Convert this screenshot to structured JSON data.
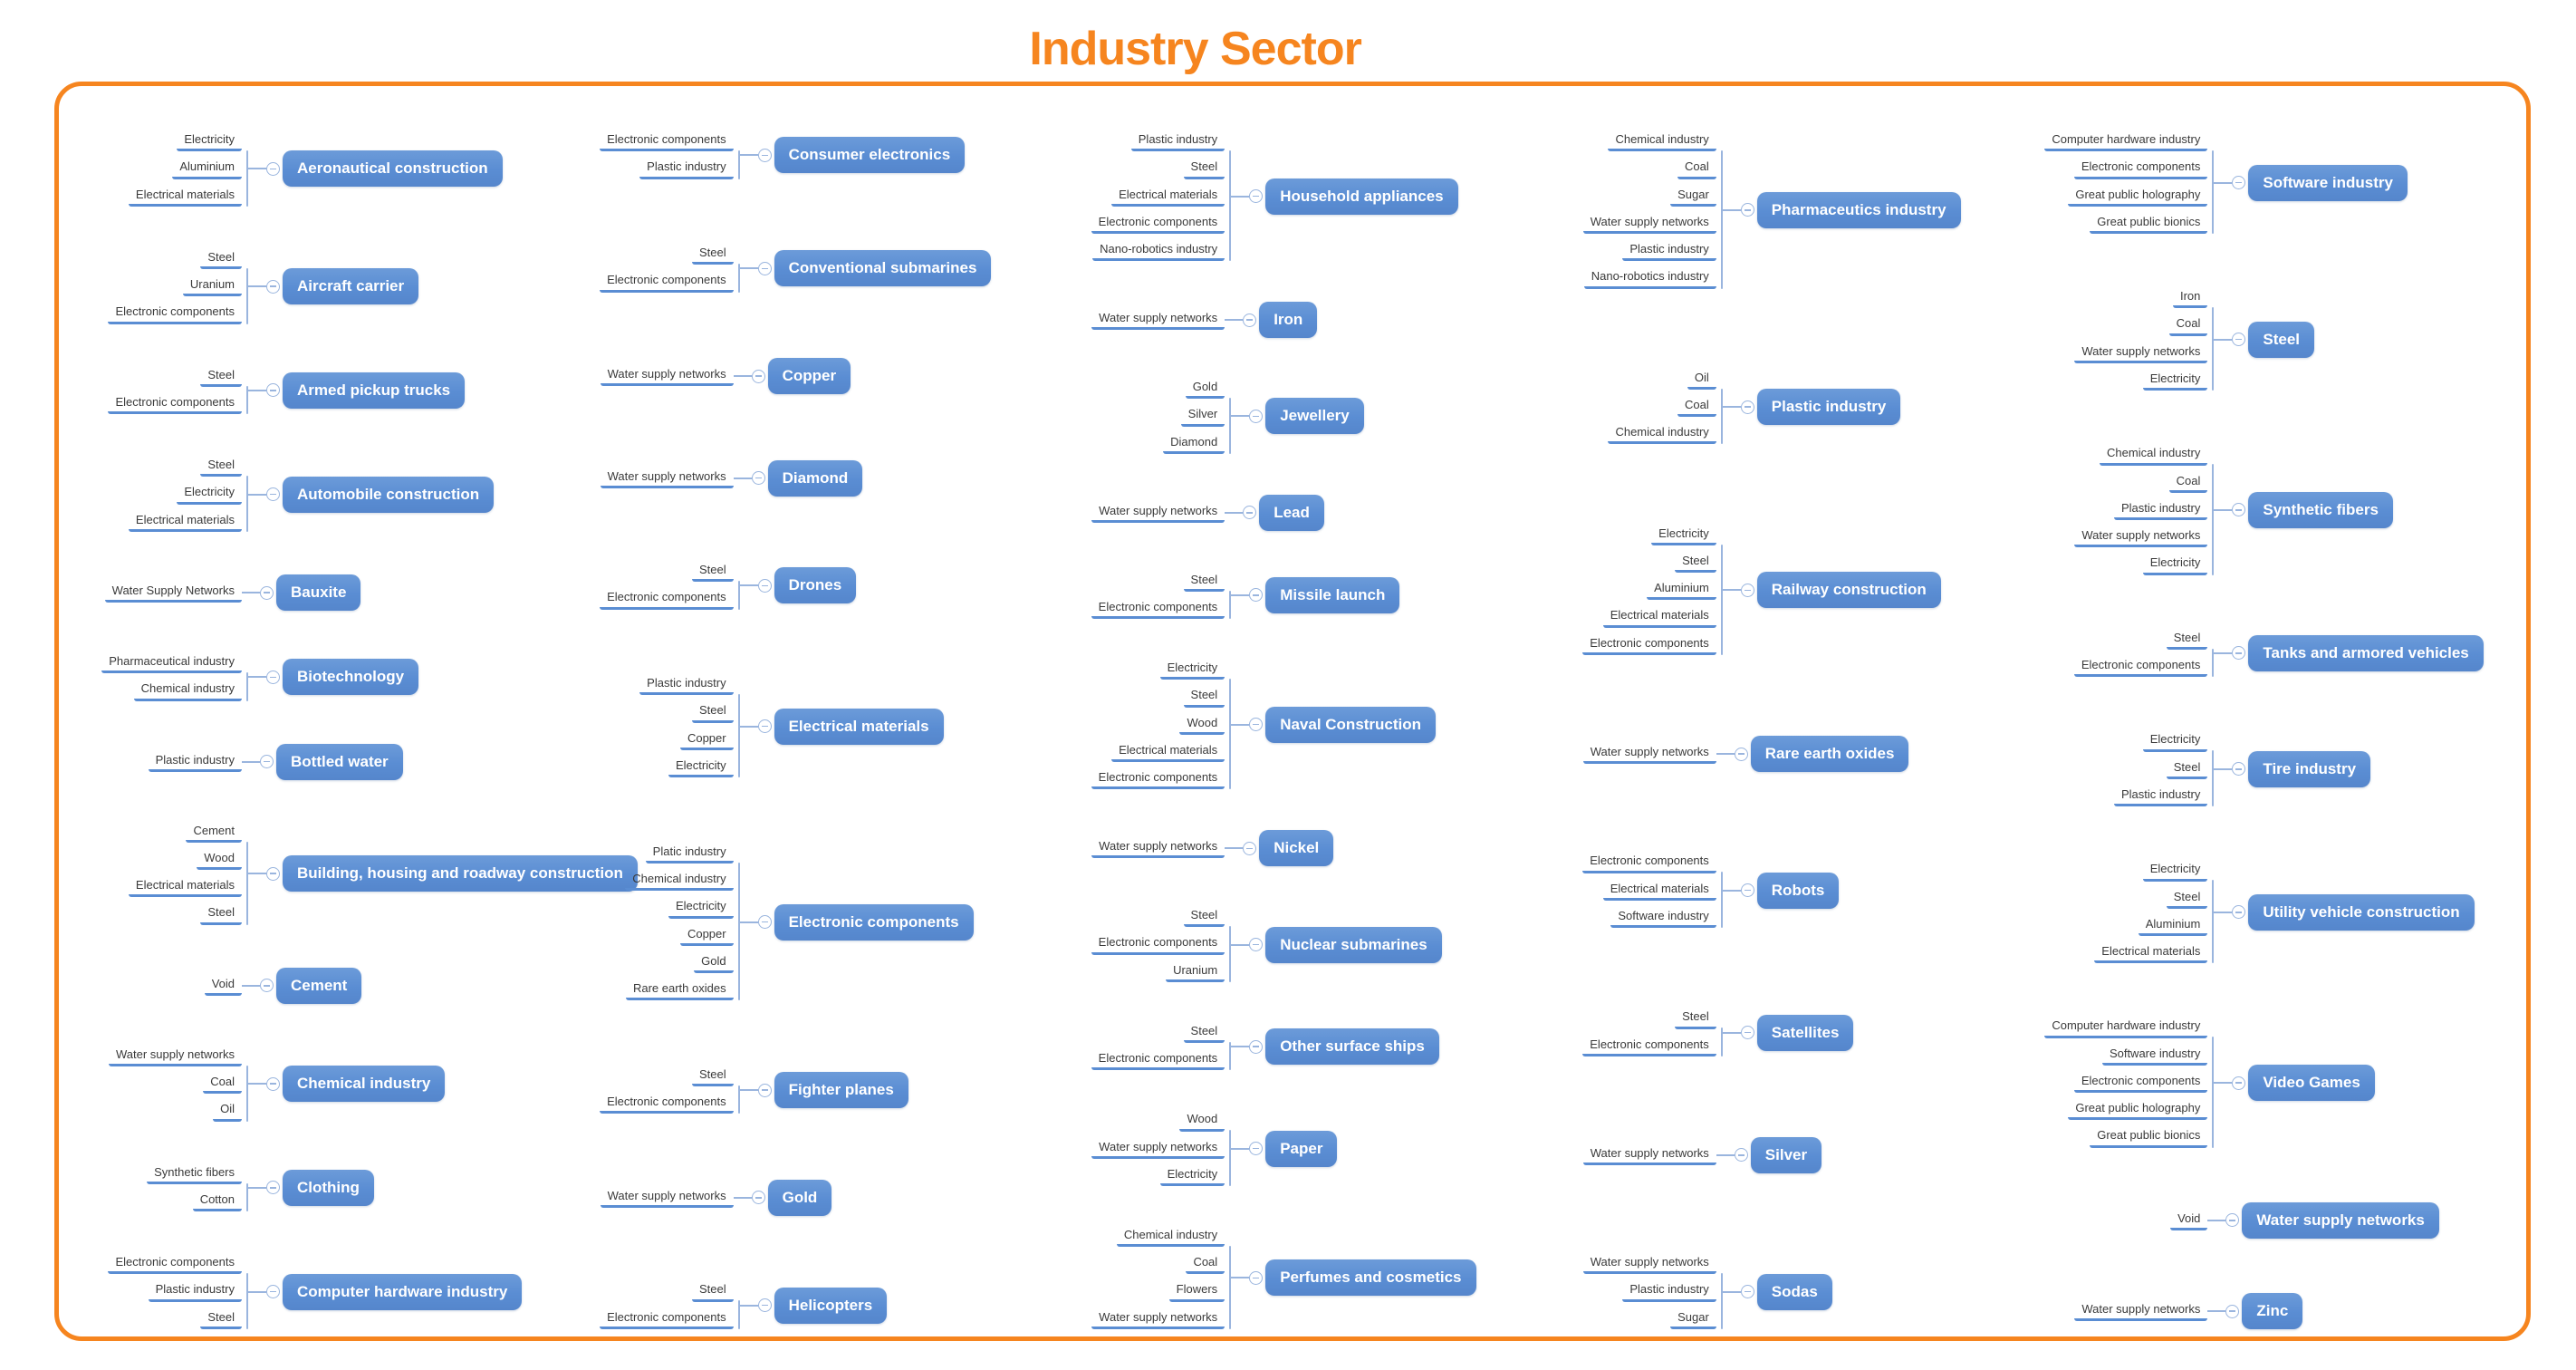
{
  "title": "Industry Sector",
  "colors": {
    "accent_orange": "#F6851F",
    "node_blue": "#5A8DD3",
    "connector_blue": "#9AB5DE",
    "label_text": "#3A3A3A"
  },
  "icons": {
    "collapse": "minus-in-circle"
  },
  "columns": [
    {
      "entries": [
        {
          "name": "Aeronautical construction",
          "inputs": [
            "Electricity",
            "Aluminium",
            "Electrical materials"
          ]
        },
        {
          "name": "Aircraft carrier",
          "inputs": [
            "Steel",
            "Uranium",
            "Electronic components"
          ]
        },
        {
          "name": "Armed pickup trucks",
          "inputs": [
            "Steel",
            "Electronic components"
          ]
        },
        {
          "name": "Automobile construction",
          "inputs": [
            "Steel",
            "Electricity",
            "Electrical materials"
          ]
        },
        {
          "name": "Bauxite",
          "inputs": [
            "Water Supply Networks"
          ]
        },
        {
          "name": "Biotechnology",
          "inputs": [
            "Pharmaceutical industry",
            "Chemical industry"
          ]
        },
        {
          "name": "Bottled water",
          "inputs": [
            "Plastic industry"
          ]
        },
        {
          "name": "Building, housing and roadway construction",
          "inputs": [
            "Cement",
            "Wood",
            "Electrical materials",
            "Steel"
          ]
        },
        {
          "name": "Cement",
          "inputs": [
            "Void"
          ]
        },
        {
          "name": "Chemical industry",
          "inputs": [
            "Water supply networks",
            "Coal",
            "Oil"
          ]
        },
        {
          "name": "Clothing",
          "inputs": [
            "Synthetic fibers",
            "Cotton"
          ]
        },
        {
          "name": "Computer hardware industry",
          "inputs": [
            "Electronic components",
            "Plastic industry",
            "Steel"
          ]
        }
      ]
    },
    {
      "entries": [
        {
          "name": "Consumer electronics",
          "inputs": [
            "Electronic components",
            "Plastic industry"
          ]
        },
        {
          "name": "Conventional submarines",
          "inputs": [
            "Steel",
            "Electronic components"
          ]
        },
        {
          "name": "Copper",
          "inputs": [
            "Water supply networks"
          ]
        },
        {
          "name": "Diamond",
          "inputs": [
            "Water supply networks"
          ]
        },
        {
          "name": "Drones",
          "inputs": [
            "Steel",
            "Electronic components"
          ]
        },
        {
          "name": "Electrical materials",
          "inputs": [
            "Plastic industry",
            "Steel",
            "Copper",
            "Electricity"
          ]
        },
        {
          "name": "Electronic components",
          "inputs": [
            "Platic industry",
            "Chemical industry",
            "Electricity",
            "Copper",
            "Gold",
            "Rare earth oxides"
          ]
        },
        {
          "name": "Fighter planes",
          "inputs": [
            "Steel",
            "Electronic components"
          ]
        },
        {
          "name": "Gold",
          "inputs": [
            "Water supply networks"
          ]
        },
        {
          "name": "Helicopters",
          "inputs": [
            "Steel",
            "Electronic components"
          ]
        }
      ]
    },
    {
      "entries": [
        {
          "name": "Household appliances",
          "inputs": [
            "Plastic industry",
            "Steel",
            "Electrical materials",
            "Electronic components",
            "Nano-robotics industry"
          ]
        },
        {
          "name": "Iron",
          "inputs": [
            "Water supply networks"
          ]
        },
        {
          "name": "Jewellery",
          "inputs": [
            "Gold",
            "Silver",
            "Diamond"
          ]
        },
        {
          "name": "Lead",
          "inputs": [
            "Water supply networks"
          ]
        },
        {
          "name": "Missile launch",
          "inputs": [
            "Steel",
            "Electronic components"
          ]
        },
        {
          "name": "Naval Construction",
          "inputs": [
            "Electricity",
            "Steel",
            "Wood",
            "Electrical materials",
            "Electronic components"
          ]
        },
        {
          "name": "Nickel",
          "inputs": [
            "Water supply networks"
          ]
        },
        {
          "name": "Nuclear submarines",
          "inputs": [
            "Steel",
            "Electronic components",
            "Uranium"
          ]
        },
        {
          "name": "Other surface ships",
          "inputs": [
            "Steel",
            "Electronic components"
          ]
        },
        {
          "name": "Paper",
          "inputs": [
            "Wood",
            "Water supply networks",
            "Electricity"
          ]
        },
        {
          "name": "Perfumes and cosmetics",
          "inputs": [
            "Chemical industry",
            "Coal",
            "Flowers",
            "Water supply networks"
          ]
        }
      ]
    },
    {
      "entries": [
        {
          "name": "Pharmaceutics industry",
          "inputs": [
            "Chemical industry",
            "Coal",
            "Sugar",
            "Water supply networks",
            "Plastic industry",
            "Nano-robotics industry"
          ]
        },
        {
          "name": "Plastic industry",
          "inputs": [
            "Oil",
            "Coal",
            "Chemical industry"
          ]
        },
        {
          "name": "Railway construction",
          "inputs": [
            "Electricity",
            "Steel",
            "Aluminium",
            "Electrical materials",
            "Electronic components"
          ]
        },
        {
          "name": "Rare earth oxides",
          "inputs": [
            "Water supply networks"
          ]
        },
        {
          "name": "Robots",
          "inputs": [
            "Electronic components",
            "Electrical materials",
            "Software industry"
          ]
        },
        {
          "name": "Satellites",
          "inputs": [
            "Steel",
            "Electronic components"
          ]
        },
        {
          "name": "Silver",
          "inputs": [
            "Water supply networks"
          ]
        },
        {
          "name": "Sodas",
          "inputs": [
            "Water supply networks",
            "Plastic industry",
            "Sugar"
          ]
        }
      ]
    },
    {
      "entries": [
        {
          "name": "Software industry",
          "inputs": [
            "Computer hardware industry",
            "Electronic components",
            "Great public holography",
            "Great public bionics"
          ]
        },
        {
          "name": "Steel",
          "inputs": [
            "Iron",
            "Coal",
            "Water supply networks",
            "Electricity"
          ]
        },
        {
          "name": "Synthetic fibers",
          "inputs": [
            "Chemical industry",
            "Coal",
            "Plastic industry",
            "Water supply networks",
            "Electricity"
          ]
        },
        {
          "name": "Tanks and armored vehicles",
          "inputs": [
            "Steel",
            "Electronic components"
          ]
        },
        {
          "name": "Tire industry",
          "inputs": [
            "Electricity",
            "Steel",
            "Plastic industry"
          ]
        },
        {
          "name": "Utility vehicle construction",
          "inputs": [
            "Electricity",
            "Steel",
            "Aluminium",
            "Electrical materials"
          ]
        },
        {
          "name": "Video Games",
          "inputs": [
            "Computer hardware industry",
            "Software industry",
            "Electronic components",
            "Great public holography",
            "Great public bionics"
          ]
        },
        {
          "name": "Water supply networks",
          "inputs": [
            "Void"
          ]
        },
        {
          "name": "Zinc",
          "inputs": [
            "Water supply networks"
          ]
        }
      ]
    }
  ]
}
